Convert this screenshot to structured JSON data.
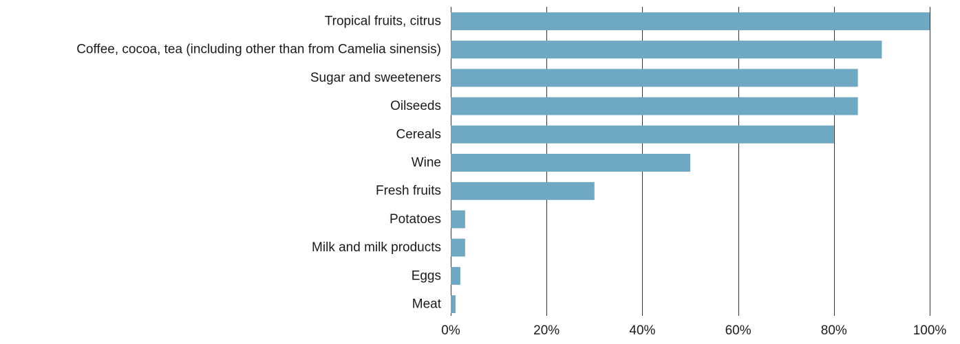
{
  "chart_data": {
    "type": "bar",
    "orientation": "horizontal",
    "categories": [
      "Tropical fruits, citrus",
      "Coffee, cocoa, tea (including other than from Camelia sinensis)",
      "Sugar and sweeteners",
      "Oilseeds",
      "Cereals",
      "Wine",
      "Fresh fruits",
      "Potatoes",
      "Milk and milk products",
      "Eggs",
      "Meat"
    ],
    "values": [
      100,
      90,
      85,
      85,
      80,
      50,
      30,
      3,
      3,
      2,
      1
    ],
    "xlim": [
      0,
      100
    ],
    "x_ticks": [
      0,
      20,
      40,
      60,
      80,
      100
    ],
    "x_tick_labels": [
      "0%",
      "20%",
      "40%",
      "60%",
      "80%",
      "100%"
    ],
    "grid": "vertical",
    "bar_color": "#6fa8c3",
    "title": "",
    "xlabel": "",
    "ylabel": ""
  }
}
